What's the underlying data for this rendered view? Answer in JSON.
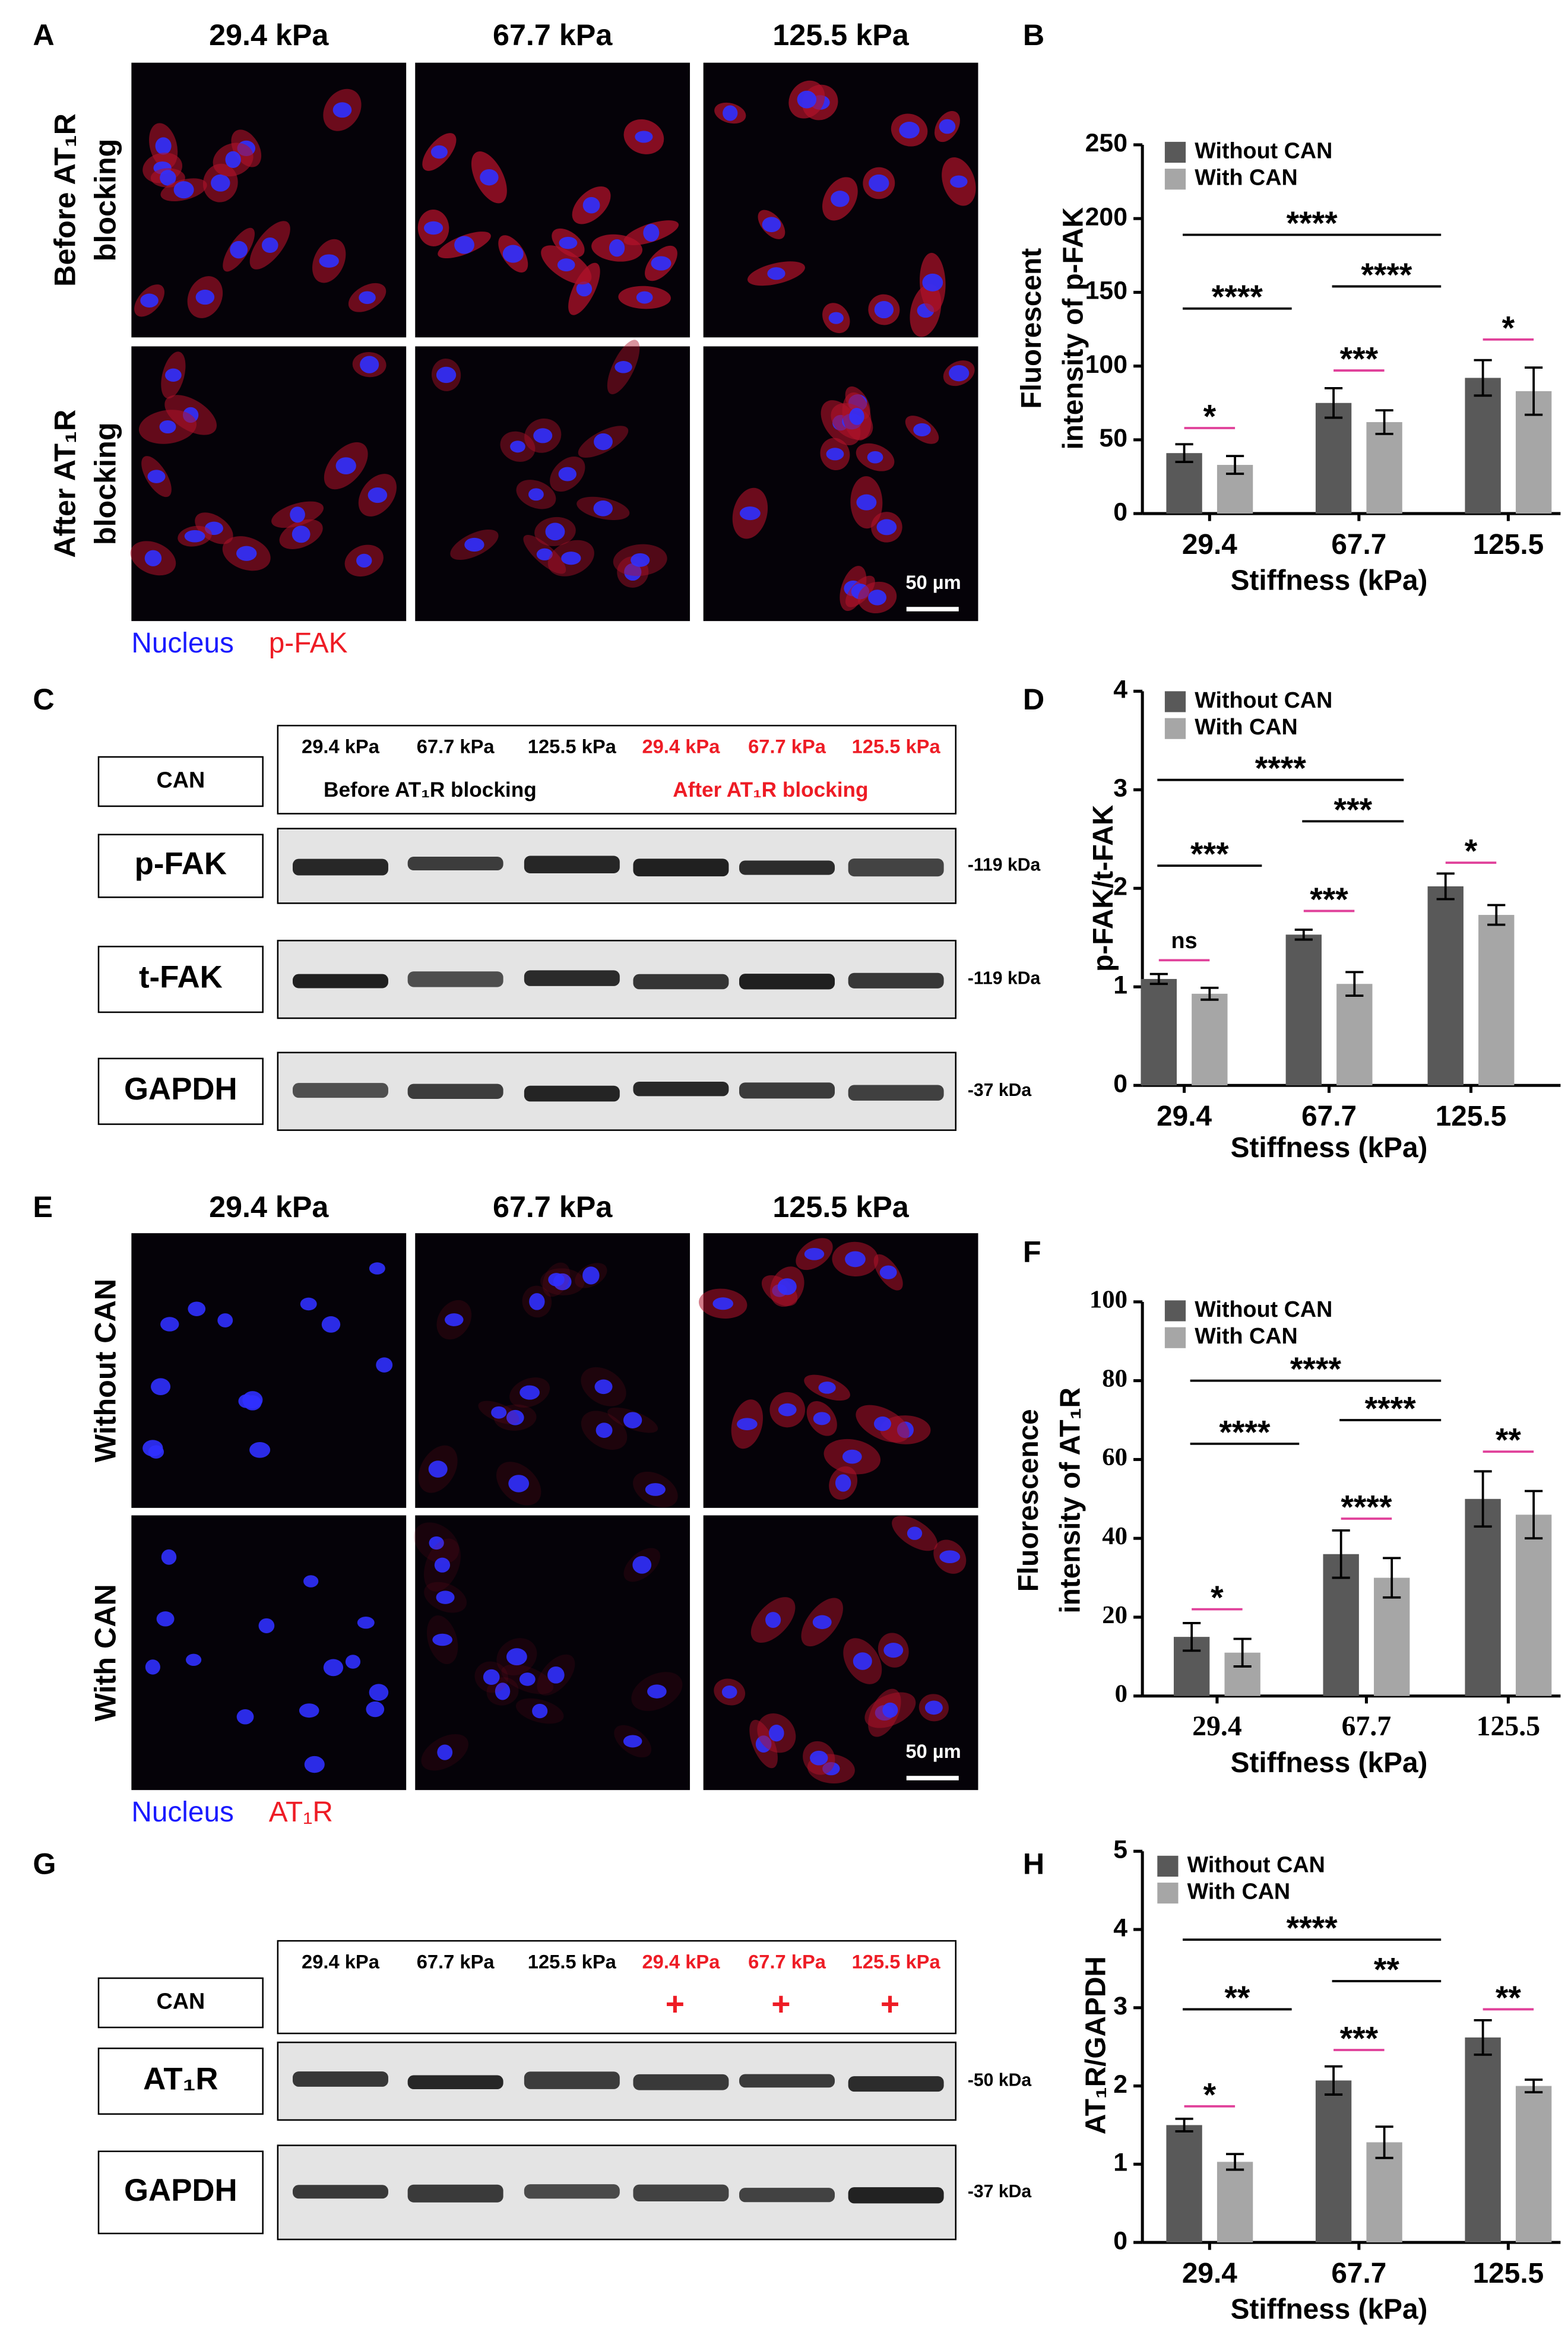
{
  "panels": [
    {
      "label": "A",
      "columns": [
        "29.4 kPa",
        "67.7 kPa",
        "125.5 kPa"
      ],
      "rows": [
        [
          "Before AT₁R",
          "blocking"
        ],
        [
          "After AT₁R",
          "blocking"
        ]
      ],
      "scale_bar": "50 µm",
      "legend": [
        {
          "text": "Nucleus",
          "color": "#1a1aff"
        },
        {
          "text": "p-FAK",
          "color": "#ee1c25"
        }
      ]
    },
    {
      "label": "C",
      "control_label": "CAN",
      "lanes": [
        {
          "text": "29.4 kPa",
          "color": "#000000"
        },
        {
          "text": "67.7 kPa",
          "color": "#000000"
        },
        {
          "text": "125.5 kPa",
          "color": "#000000"
        },
        {
          "text": "29.4 kPa",
          "color": "#ee1c25"
        },
        {
          "text": "67.7 kPa",
          "color": "#ee1c25"
        },
        {
          "text": "125.5 kPa",
          "color": "#ee1c25"
        }
      ],
      "groups": [
        {
          "text": "Before AT₁R blocking",
          "color": "#000000"
        },
        {
          "text": "After AT₁R blocking",
          "color": "#ee1c25"
        }
      ],
      "blots": [
        {
          "name": "p-FAK",
          "size": "-119 kDa"
        },
        {
          "name": "t-FAK",
          "size": "-119 kDa"
        },
        {
          "name": "GAPDH",
          "size": "-37 kDa"
        }
      ]
    },
    {
      "label": "E",
      "columns": [
        "29.4 kPa",
        "67.7 kPa",
        "125.5 kPa"
      ],
      "rows": [
        [
          "Without CAN"
        ],
        [
          "With CAN"
        ]
      ],
      "scale_bar": "50 µm",
      "legend": [
        {
          "text": "Nucleus",
          "color": "#1a1aff"
        },
        {
          "text": "AT₁R",
          "color": "#ee1c25"
        }
      ]
    },
    {
      "label": "G",
      "control_label": "CAN",
      "lanes": [
        {
          "text": "29.4 kPa",
          "color": "#000000"
        },
        {
          "text": "67.7 kPa",
          "color": "#000000"
        },
        {
          "text": "125.5 kPa",
          "color": "#000000"
        },
        {
          "text": "29.4 kPa",
          "color": "#ee1c25",
          "mark": "+"
        },
        {
          "text": "67.7 kPa",
          "color": "#ee1c25",
          "mark": "+"
        },
        {
          "text": "125.5 kPa",
          "color": "#ee1c25",
          "mark": "+"
        }
      ],
      "blots": [
        {
          "name": "AT₁R",
          "size": "-50 kDa"
        },
        {
          "name": "GAPDH",
          "size": "-37 kDa"
        }
      ]
    }
  ],
  "chart_data": [
    {
      "type": "bar",
      "panel": "B",
      "ylabel": [
        "Fluorescent",
        "intensity of p-FAK"
      ],
      "xlabel": "Stiffness (kPa)",
      "categories": [
        "29.4",
        "67.7",
        "125.5"
      ],
      "series": [
        {
          "name": "Without CAN",
          "color": "#595959",
          "values": [
            41,
            75,
            92
          ],
          "errors": [
            6,
            10,
            12
          ]
        },
        {
          "name": "With CAN",
          "color": "#a6a6a6",
          "values": [
            33,
            62,
            83
          ],
          "errors": [
            6,
            8,
            16
          ]
        }
      ],
      "ylim": [
        0,
        250
      ],
      "yticks": [
        0,
        50,
        100,
        150,
        200,
        250
      ],
      "legend": "upper left",
      "tick_font": "sans",
      "significance": [
        {
          "label": "****",
          "y": 189,
          "between": [
            0,
            2
          ],
          "color": "#000000"
        },
        {
          "label": "****",
          "y": 139,
          "between": [
            0,
            1
          ],
          "color": "#000000"
        },
        {
          "label": "****",
          "y": 154,
          "between": [
            1,
            2
          ],
          "color": "#000000"
        },
        {
          "label": "*",
          "y": 58,
          "category": 0,
          "color": "#e0409a"
        },
        {
          "label": "***",
          "y": 97,
          "category": 1,
          "color": "#e0409a"
        },
        {
          "label": "*",
          "y": 118,
          "category": 2,
          "color": "#e0409a"
        }
      ]
    },
    {
      "type": "bar",
      "panel": "D",
      "ylabel": [
        "p-FAK/t-FAK"
      ],
      "xlabel": "Stiffness (kPa)",
      "categories": [
        "29.4",
        "67.7",
        "125.5"
      ],
      "series": [
        {
          "name": "Without CAN",
          "color": "#595959",
          "values": [
            1.08,
            1.53,
            2.02
          ],
          "errors": [
            0.05,
            0.05,
            0.13
          ]
        },
        {
          "name": "With CAN",
          "color": "#a6a6a6",
          "values": [
            0.93,
            1.03,
            1.73
          ],
          "errors": [
            0.06,
            0.12,
            0.1
          ]
        }
      ],
      "ylim": [
        0,
        4
      ],
      "yticks": [
        0,
        1,
        2,
        3,
        4
      ],
      "legend": "upper left",
      "tick_font": "sans",
      "significance": [
        {
          "label": "****",
          "y": 3.1,
          "between": [
            0,
            2
          ],
          "color": "#000000"
        },
        {
          "label": "***",
          "y": 2.23,
          "between": [
            0,
            1
          ],
          "color": "#000000"
        },
        {
          "label": "***",
          "y": 2.68,
          "between": [
            1,
            2
          ],
          "color": "#000000"
        },
        {
          "label": "ns",
          "y": 1.27,
          "category": 0,
          "color": "#e0409a"
        },
        {
          "label": "***",
          "y": 1.77,
          "category": 1,
          "color": "#e0409a"
        },
        {
          "label": "*",
          "y": 2.26,
          "category": 2,
          "color": "#e0409a"
        }
      ]
    },
    {
      "type": "bar",
      "panel": "F",
      "ylabel": [
        "Fluorescence",
        "intensity of AT₁R"
      ],
      "xlabel": "Stiffness (kPa)",
      "categories": [
        "29.4",
        "67.7",
        "125.5"
      ],
      "series": [
        {
          "name": "Without CAN",
          "color": "#595959",
          "values": [
            15,
            36,
            50
          ],
          "errors": [
            3.5,
            6,
            7
          ]
        },
        {
          "name": "With CAN",
          "color": "#a6a6a6",
          "values": [
            11,
            30,
            46
          ],
          "errors": [
            3.5,
            5,
            6
          ]
        }
      ],
      "ylim": [
        0,
        100
      ],
      "yticks": [
        0,
        20,
        40,
        60,
        80,
        100
      ],
      "legend": "upper left",
      "tick_font": "serif",
      "significance": [
        {
          "label": "****",
          "y": 80,
          "between": [
            0,
            2
          ],
          "color": "#000000"
        },
        {
          "label": "****",
          "y": 64,
          "between": [
            0,
            1
          ],
          "color": "#000000"
        },
        {
          "label": "****",
          "y": 70,
          "between": [
            1,
            2
          ],
          "color": "#000000"
        },
        {
          "label": "*",
          "y": 22,
          "category": 0,
          "color": "#e0409a"
        },
        {
          "label": "****",
          "y": 45,
          "category": 1,
          "color": "#e0409a"
        },
        {
          "label": "**",
          "y": 62,
          "category": 2,
          "color": "#e0409a"
        }
      ]
    },
    {
      "type": "bar",
      "panel": "H",
      "ylabel": [
        "AT₁R/GAPDH"
      ],
      "xlabel": "Stiffness (kPa)",
      "categories": [
        "29.4",
        "67.7",
        "125.5"
      ],
      "series": [
        {
          "name": "Without CAN",
          "color": "#595959",
          "values": [
            1.5,
            2.07,
            2.62
          ],
          "errors": [
            0.08,
            0.18,
            0.22
          ]
        },
        {
          "name": "With CAN",
          "color": "#a6a6a6",
          "values": [
            1.03,
            1.28,
            2.0
          ],
          "errors": [
            0.1,
            0.2,
            0.08
          ]
        }
      ],
      "ylim": [
        0,
        5
      ],
      "yticks": [
        0,
        1,
        2,
        3,
        4,
        5
      ],
      "legend": "upper left",
      "tick_font": "sans",
      "significance": [
        {
          "label": "****",
          "y": 3.87,
          "between": [
            0,
            2
          ],
          "color": "#000000"
        },
        {
          "label": "**",
          "y": 2.98,
          "between": [
            0,
            1
          ],
          "color": "#000000"
        },
        {
          "label": "**",
          "y": 3.34,
          "between": [
            1,
            2
          ],
          "color": "#000000"
        },
        {
          "label": "*",
          "y": 1.74,
          "category": 0,
          "color": "#e0409a"
        },
        {
          "label": "***",
          "y": 2.46,
          "category": 1,
          "color": "#e0409a"
        },
        {
          "label": "**",
          "y": 2.98,
          "category": 2,
          "color": "#e0409a"
        }
      ]
    }
  ]
}
